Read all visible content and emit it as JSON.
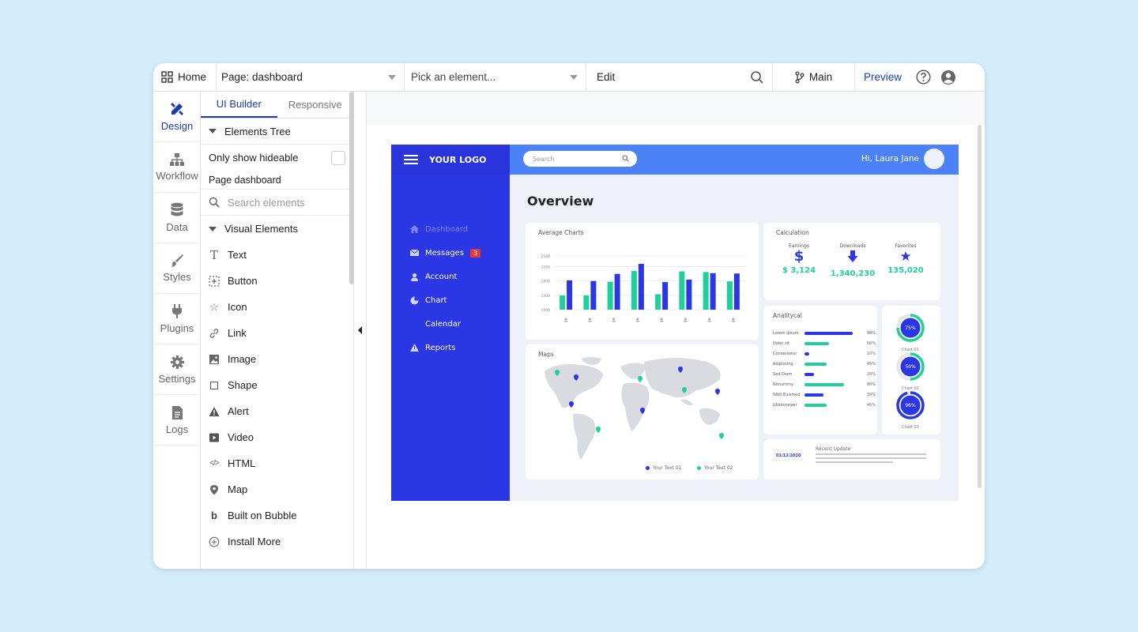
{
  "topbar": {
    "home_label": "Home",
    "page_label": "Page: dashboard",
    "pick_placeholder": "Pick an element...",
    "edit_label": "Edit",
    "branch_label": "Main",
    "preview_label": "Preview"
  },
  "rail": [
    {
      "label": "Design",
      "icon": "design-icon",
      "active": true
    },
    {
      "label": "Workflow",
      "icon": "workflow-icon"
    },
    {
      "label": "Data",
      "icon": "database-icon"
    },
    {
      "label": "Styles",
      "icon": "brush-icon"
    },
    {
      "label": "Plugins",
      "icon": "plug-icon"
    },
    {
      "label": "Settings",
      "icon": "gear-icon"
    },
    {
      "label": "Logs",
      "icon": "document-icon"
    }
  ],
  "panel": {
    "tabs": [
      "UI Builder",
      "Responsive"
    ],
    "elements_tree": "Elements Tree",
    "only_hideable": "Only show hideable",
    "page_item": "Page dashboard",
    "search_placeholder": "Search elements",
    "visual_elements": "Visual Elements",
    "items": [
      "Text",
      "Button",
      "Icon",
      "Link",
      "Image",
      "Shape",
      "Alert",
      "Video",
      "HTML",
      "Map",
      "Built on Bubble",
      "Install More"
    ]
  },
  "dashboard": {
    "logo": "YOUR LOGO",
    "search_placeholder": "Search",
    "greeting": "Hi, Laura Jane",
    "nav": [
      {
        "label": "Dashboard",
        "dim": true
      },
      {
        "label": "Messages",
        "badge": "3"
      },
      {
        "label": "Account"
      },
      {
        "label": "Chart"
      },
      {
        "label": "Calendar"
      },
      {
        "label": "Reports"
      }
    ],
    "overview": "Overview",
    "average_charts": "Average Charts",
    "calculation": "Calculation",
    "calc": [
      {
        "label": "Earnings",
        "value": "$ 3,124",
        "icon": "dollar-icon"
      },
      {
        "label": "Downloads",
        "value": "1,340,230",
        "icon": "download-icon"
      },
      {
        "label": "Favorites",
        "value": "135,020",
        "icon": "star-icon"
      }
    ],
    "analytical": "Analitycal",
    "analytical_rows": [
      {
        "label": "Lorem ipsum",
        "pct": 98
      },
      {
        "label": "Dolor sit",
        "pct": 50
      },
      {
        "label": "Consectetur",
        "pct": 10
      },
      {
        "label": "Adipiscing",
        "pct": 45
      },
      {
        "label": "Sed Diam",
        "pct": 20
      },
      {
        "label": "Nonummy",
        "pct": 80
      },
      {
        "label": "Nibh Euismod",
        "pct": 39
      },
      {
        "label": "Ullamcorper",
        "pct": 45
      }
    ],
    "donuts": [
      {
        "value": "75%",
        "label": "Chart 01",
        "fraction": 0.75,
        "color": "#1fcf9e"
      },
      {
        "value": "50%",
        "label": "Chart 02",
        "fraction": 0.5,
        "color": "#1fcf9e"
      },
      {
        "value": "96%",
        "label": "Chart 03",
        "fraction": 0.96,
        "color": "#2b36e4"
      }
    ],
    "maps": "Maps",
    "legend": [
      "Your Text 01",
      "Your Text 02"
    ],
    "recent_update": "Recent Update",
    "recent_date": "01/12/2020",
    "colors": {
      "blue": "#2b36e4",
      "green": "#1fcf9e"
    }
  },
  "chart_data": {
    "type": "bar",
    "title": "Average Charts",
    "categories": [
      "1",
      "2",
      "3",
      "4",
      "5",
      "6",
      "7",
      "8"
    ],
    "series": [
      {
        "values": [
          1400,
          1400,
          1780,
          2080,
          1430,
          2070,
          2050,
          1790
        ]
      },
      {
        "values": [
          1820,
          1800,
          2000,
          2280,
          1770,
          1840,
          2020,
          2010
        ]
      }
    ],
    "yticks": [
      1000,
      1400,
      1800,
      2200,
      2500
    ],
    "ylim": [
      1000,
      2500
    ]
  }
}
